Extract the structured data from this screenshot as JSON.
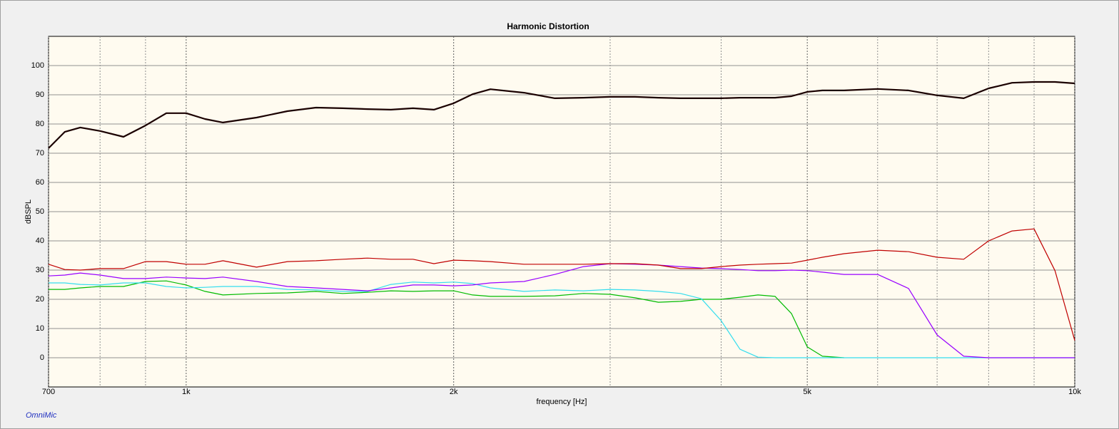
{
  "chart_data": {
    "type": "line",
    "title": "Harmonic Distortion",
    "xlabel": "frequency [Hz]",
    "ylabel": "dBSPL",
    "watermark": "OmniMic",
    "log_x": true,
    "grid": true,
    "xlim": [
      700,
      10000
    ],
    "xticks": [
      700,
      {
        "value": 1000,
        "label": "1k"
      },
      {
        "value": 2000,
        "label": "2k"
      },
      {
        "value": 5000,
        "label": "5k"
      },
      {
        "value": 10000,
        "label": "10k"
      }
    ],
    "minor_xticks": [
      800,
      900,
      3000,
      4000,
      6000,
      7000,
      8000,
      9000
    ],
    "ylim": [
      -10,
      110
    ],
    "yticks": [
      0,
      10,
      20,
      30,
      40,
      50,
      60,
      70,
      80,
      90,
      100
    ],
    "x": [
      700,
      730,
      760,
      800,
      850,
      900,
      950,
      1000,
      1050,
      1100,
      1200,
      1300,
      1400,
      1500,
      1600,
      1700,
      1800,
      1900,
      2000,
      2100,
      2200,
      2400,
      2600,
      2800,
      3000,
      3200,
      3400,
      3600,
      3800,
      4000,
      4200,
      4400,
      4600,
      4800,
      5000,
      5200,
      5500,
      6000,
      6500,
      7000,
      7500,
      8000,
      8500,
      9000,
      9500,
      10000
    ],
    "series": [
      {
        "color": "#1a0000",
        "width": 2.2,
        "values": [
          71.7,
          77.3,
          78.8,
          77.6,
          75.6,
          79.5,
          83.7,
          83.7,
          81.7,
          80.5,
          82.2,
          84.4,
          85.6,
          85.4,
          85.1,
          84.9,
          85.4,
          84.9,
          87.1,
          90.2,
          91.9,
          90.7,
          88.8,
          89,
          89.3,
          89.3,
          89,
          88.8,
          88.8,
          88.8,
          89,
          89,
          89,
          89.5,
          91,
          91.5,
          91.5,
          92,
          91.5,
          89.8,
          88.8,
          92.2,
          94.1,
          94.4,
          94.4,
          93.9
        ]
      },
      {
        "color": "#c00000",
        "width": 1.2,
        "values": [
          32,
          30.2,
          30,
          30.5,
          30.5,
          32.9,
          32.9,
          32,
          32,
          33.2,
          31,
          32.9,
          33.2,
          33.7,
          34.1,
          33.7,
          33.7,
          32.2,
          33.4,
          33.2,
          32.9,
          32,
          32,
          32,
          32.2,
          32.2,
          31.7,
          30.5,
          30.5,
          31.2,
          31.7,
          32,
          32.2,
          32.4,
          33.4,
          34.4,
          35.6,
          36.8,
          36.3,
          34.4,
          33.7,
          40,
          43.4,
          44.1,
          29.8,
          5.9
        ]
      },
      {
        "color": "#9900ff",
        "width": 1.2,
        "values": [
          28,
          28.3,
          29,
          28.3,
          27.1,
          27.1,
          27.6,
          27.3,
          27.1,
          27.6,
          26.1,
          24.4,
          23.9,
          23.4,
          22.9,
          23.9,
          24.9,
          24.9,
          24.6,
          24.9,
          25.6,
          26.1,
          28.5,
          31.2,
          32.2,
          32,
          31.7,
          31.2,
          30.7,
          30.5,
          30.2,
          29.8,
          29.8,
          30,
          29.8,
          29.3,
          28.5,
          28.5,
          23.7,
          7.8,
          0.5,
          0,
          0,
          0,
          0,
          0
        ]
      },
      {
        "color": "#33ddee",
        "width": 1.2,
        "values": [
          25.6,
          25.6,
          25.1,
          24.9,
          25.6,
          25.6,
          24.4,
          23.9,
          24.1,
          24.4,
          24.4,
          23.4,
          23.2,
          22.7,
          22.7,
          25.1,
          25.9,
          25.6,
          25.9,
          25.4,
          23.9,
          22.7,
          23.2,
          22.9,
          23.4,
          23.2,
          22.7,
          22,
          20.2,
          12.7,
          2.9,
          0.2,
          0,
          0,
          0,
          0,
          0,
          0,
          0,
          0,
          0,
          0,
          0,
          0,
          0,
          0
        ]
      },
      {
        "color": "#00bb00",
        "width": 1.2,
        "values": [
          23.4,
          23.4,
          23.9,
          24.4,
          24.4,
          26.1,
          26.3,
          24.9,
          22.7,
          21.5,
          22,
          22.2,
          22.7,
          22,
          22.4,
          22.9,
          22.7,
          22.9,
          22.9,
          21.5,
          21,
          21,
          21.2,
          22,
          21.7,
          20.5,
          19,
          19.3,
          20,
          20,
          20.7,
          21.5,
          21,
          15.1,
          3.7,
          0.5,
          0,
          null,
          null,
          null,
          null,
          null,
          null,
          null,
          null,
          null
        ]
      }
    ]
  }
}
